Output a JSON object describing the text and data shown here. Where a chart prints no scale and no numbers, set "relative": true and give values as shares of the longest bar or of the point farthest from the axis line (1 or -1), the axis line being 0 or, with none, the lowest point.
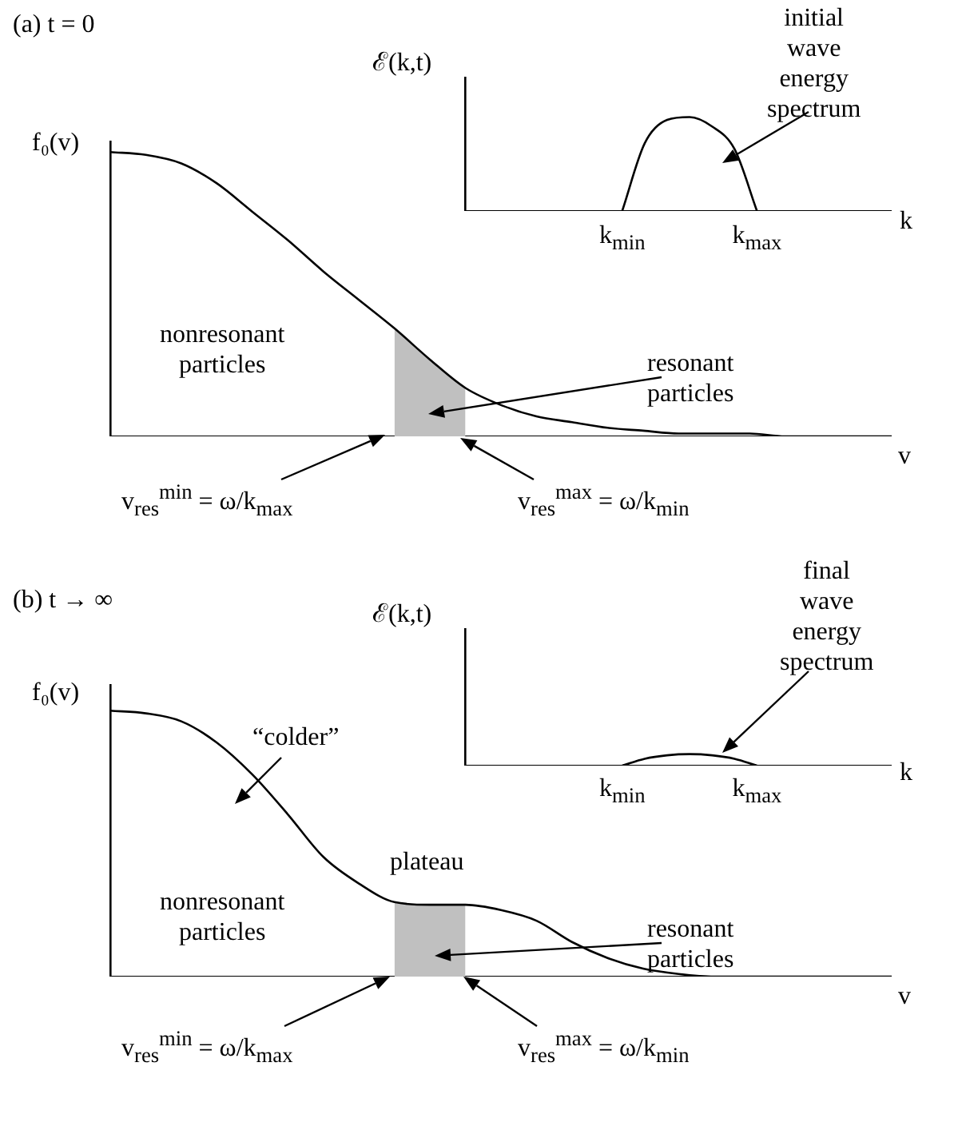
{
  "chart_data": [
    {
      "type": "line",
      "title": "(a) t = 0",
      "xlabel": "v",
      "ylabel": "f₀(v)",
      "relative": true,
      "marker": "none",
      "tick_labels": false,
      "categories": [
        null,
        null,
        null,
        null,
        null,
        null,
        null,
        null,
        null,
        null,
        null,
        null,
        null,
        null,
        null,
        null,
        null,
        null,
        null,
        null,
        null,
        null,
        null
      ],
      "series": [
        {
          "type": "area",
          "color": "#c0c0c0",
          "values": [
            null,
            null,
            null,
            null,
            null,
            null,
            null,
            null,
            0.38,
            0.27,
            0.17,
            null,
            null,
            null,
            null,
            null,
            null,
            null,
            null,
            null,
            null,
            null,
            null
          ]
        },
        {
          "color": "#000000",
          "values": [
            1,
            0.99,
            0.96,
            0.89,
            0.79,
            0.69,
            0.58,
            0.48,
            0.38,
            0.27,
            0.17,
            0.11,
            0.07,
            0.05,
            0.03,
            0.02,
            0.01,
            0.01,
            0.01,
            0,
            0,
            0,
            0
          ]
        }
      ],
      "annotations": [
        "nonresonant\nparticles",
        "resonant\nparticles",
        "v$_{res}$$^{min}$ = ω/k$_{max}$",
        "v$_{res}$$^{max}$ = ω/k$_{min}$"
      ]
    },
    {
      "type": "line",
      "xlabel": "k",
      "ylabel": "ℰ(k,t)",
      "relative": true,
      "marker": "none",
      "tick_labels": "x",
      "categories": [
        null,
        null,
        null,
        null,
        null,
        null,
        null,
        "k$_{min}$",
        null,
        null,
        null,
        null,
        null,
        "k$_{max}$",
        null,
        null,
        null,
        null,
        null,
        null
      ],
      "series": [
        {
          "color": "#000000",
          "values": [
            null,
            null,
            null,
            null,
            null,
            null,
            null,
            0,
            0.72,
            0.97,
            1,
            0.9,
            0.66,
            0,
            null,
            null,
            null,
            null,
            null,
            null
          ]
        }
      ],
      "annotations": [
        "initial\nwave\nenergy\nspectrum"
      ]
    },
    {
      "type": "line",
      "title": "(b) t → ∞",
      "xlabel": "v",
      "ylabel": "f₀(v)",
      "relative": true,
      "marker": "none",
      "tick_labels": false,
      "categories": [
        null,
        null,
        null,
        null,
        null,
        null,
        null,
        null,
        null,
        null,
        null,
        null,
        null,
        null,
        null,
        null,
        null,
        null,
        null,
        null,
        null,
        null,
        null
      ],
      "series": [
        {
          "type": "area",
          "color": "#c0c0c0",
          "values": [
            null,
            null,
            null,
            null,
            null,
            null,
            null,
            null,
            0.28,
            0.27,
            0.27,
            null,
            null,
            null,
            null,
            null,
            null,
            null,
            null,
            null,
            null,
            null,
            null
          ]
        },
        {
          "color": "#000000",
          "values": [
            1,
            0.99,
            0.96,
            0.88,
            0.76,
            0.61,
            0.45,
            0.35,
            0.28,
            0.27,
            0.27,
            0.25,
            0.21,
            0.13,
            0.07,
            0.03,
            0.01,
            0,
            0,
            0,
            0,
            0,
            0
          ]
        }
      ],
      "annotations": [
        "“colder”",
        "plateau",
        "nonresonant\nparticles",
        "resonant\nparticles",
        "v$_{res}$$^{min}$ = ω/k$_{max}$",
        "v$_{res}$$^{max}$ = ω/k$_{min}$"
      ]
    },
    {
      "type": "line",
      "xlabel": "k",
      "ylabel": "ℰ(k,t)",
      "relative": true,
      "marker": "none",
      "tick_labels": "x",
      "categories": [
        null,
        null,
        null,
        null,
        null,
        null,
        null,
        "k$_{min}$",
        null,
        null,
        null,
        null,
        null,
        "k$_{max}$",
        null,
        null,
        null,
        null,
        null,
        null
      ],
      "series": [
        {
          "color": "#000000",
          "values": [
            null,
            null,
            null,
            null,
            null,
            null,
            null,
            0,
            0.6,
            0.9,
            1,
            0.9,
            0.6,
            0,
            null,
            null,
            null,
            null,
            null,
            null
          ]
        }
      ],
      "annotations": [
        "final\nwave\nenergy\nspectrum"
      ]
    }
  ]
}
